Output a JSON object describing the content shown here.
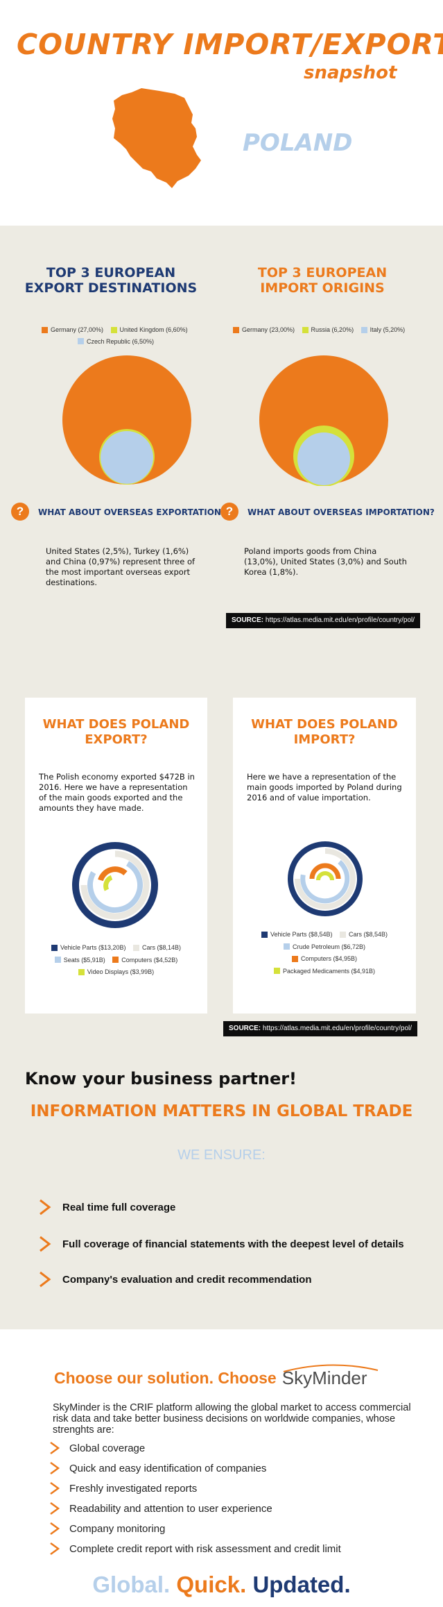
{
  "header": {
    "title": "COUNTRY IMPORT/EXPORT",
    "subtitle": "snapshot",
    "country": "POLAND",
    "map_icon": "poland-map",
    "colors": {
      "orange": "#ec7a1c",
      "light_blue": "#b5cfea",
      "navy": "#1e3a73",
      "beige": "#edebe3"
    }
  },
  "top3": {
    "export": {
      "title_line1": "TOP 3 EUROPEAN",
      "title_line2": "EXPORT DESTINATIONS",
      "legend": [
        {
          "label": "Germany (27,00%)",
          "color": "#ec7a1c"
        },
        {
          "label": "United Kingdom (6,60%)",
          "color": "#d5e13a"
        },
        {
          "label": "Czech Republic (6,50%)",
          "color": "#b5cfea"
        }
      ],
      "question": "WHAT ABOUT OVERSEAS EXPORTATION?",
      "paragraph": "United States (2,5%), Turkey (1,6%) and China (0,97%) represent three of the most important overseas export destinations."
    },
    "import": {
      "title_line1": "TOP 3 EUROPEAN",
      "title_line2": "IMPORT ORIGINS",
      "legend": [
        {
          "label": "Germany (23,00%)",
          "color": "#ec7a1c"
        },
        {
          "label": "Russia (6,20%)",
          "color": "#d5e13a"
        },
        {
          "label": "Italy (5,20%)",
          "color": "#b5cfea"
        }
      ],
      "question": "WHAT ABOUT OVERSEAS IMPORTATION?",
      "paragraph": "Poland imports goods from China (13,0%), United States (3,0%) and South Korea (1,8%)."
    },
    "source_label": "SOURCE:",
    "source_url": "https://atlas.media.mit.edu/en/profile/country/pol/"
  },
  "goods": {
    "export": {
      "title_line1": "WHAT DOES POLAND",
      "title_line2": "EXPORT?",
      "paragraph": "The Polish economy exported $472B in 2016. Here we have a representation of the main goods exported and the amounts they have made.",
      "legend": [
        {
          "label": "Vehicle Parts ($13,20B)",
          "color": "#1e3a73"
        },
        {
          "label": "Cars ($8,14B)",
          "color": "#e9e7e0"
        },
        {
          "label": "Seats ($5,91B)",
          "color": "#b5cfea"
        },
        {
          "label": "Computers ($4,52B)",
          "color": "#ec7a1c"
        },
        {
          "label": "Video Displays ($3,99B)",
          "color": "#d5e13a"
        }
      ]
    },
    "import": {
      "title_line1": "WHAT DOES POLAND",
      "title_line2": "IMPORT?",
      "paragraph": "Here we have a representation of the main goods imported by Poland during 2016 and of value importation.",
      "legend": [
        {
          "label": "Vehicle Parts ($8,54B)",
          "color": "#1e3a73"
        },
        {
          "label": "Cars ($8,54B)",
          "color": "#e9e7e0"
        },
        {
          "label": "Crude Petroleum ($6,72B)",
          "color": "#b5cfea"
        },
        {
          "label": "Computers ($4,95B)",
          "color": "#ec7a1c"
        },
        {
          "label": "Packaged Medicaments ($4,91B)",
          "color": "#d5e13a"
        }
      ]
    },
    "source_label": "SOURCE:",
    "source_url": "https://atlas.media.mit.edu/en/profile/country/pol/"
  },
  "partner": {
    "heading": "Know your business partner!",
    "subheading": "INFORMATION MATTERS IN GLOBAL TRADE",
    "ensure": "WE ENSURE:",
    "bullets": [
      "Real time full coverage",
      "Full coverage of financial statements with the deepest level of details",
      "Company's evaluation and credit recommendation"
    ]
  },
  "solution": {
    "heading": "Choose our solution. Choose",
    "brand": "SkyMinder",
    "intro": "SkyMinder is the CRIF platform allowing the global market to access commercial risk data and take better business decisions on worldwide companies, whose strenghts are:",
    "items": [
      "Global coverage",
      "Quick and easy identification of companies",
      "Freshly investigated reports",
      "Readability and attention to user experience",
      "Company monitoring",
      "Complete credit report with risk assessment and credit limit"
    ],
    "tagline": {
      "w1": "Global.",
      "w2": "Quick.",
      "w3": "Updated."
    }
  }
}
